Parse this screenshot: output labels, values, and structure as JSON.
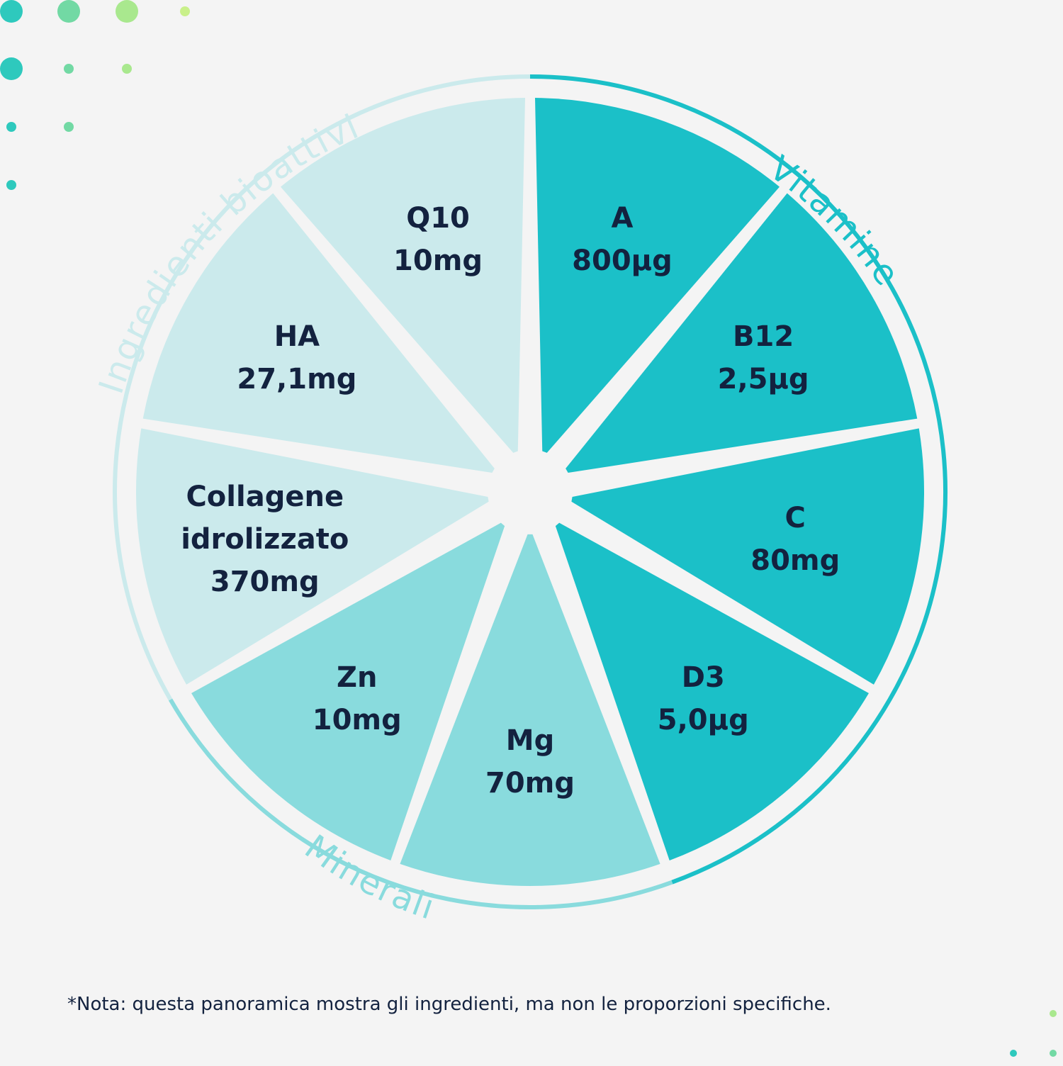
{
  "colors": {
    "background": "#f4f4f4",
    "vitamine": "#1bc0c8",
    "minerali": "#89dbdd",
    "bioattivi": "#cbeaec",
    "text": "#13223f",
    "dots": [
      "#2ec9bd",
      "#72d9a4",
      "#a9e88e",
      "#c9f08a"
    ]
  },
  "groups": [
    {
      "name": "Vitamine",
      "color": "#1bc0c8"
    },
    {
      "name": "Minerali",
      "color": "#89dbdd"
    },
    {
      "name": "Ingredienti bioattivi",
      "color": "#cbeaec"
    }
  ],
  "segments": [
    {
      "name": "A",
      "value": "800µg",
      "group": "Vitamine"
    },
    {
      "name": "B12",
      "value": "2,5µg",
      "group": "Vitamine"
    },
    {
      "name": "C",
      "value": "80mg",
      "group": "Vitamine"
    },
    {
      "name": "D3",
      "value": "5,0µg",
      "group": "Vitamine"
    },
    {
      "name": "Mg",
      "value": "70mg",
      "group": "Minerali"
    },
    {
      "name": "Zn",
      "value": "10mg",
      "group": "Minerali"
    },
    {
      "name": "Collagene idrolizzato",
      "value": "370mg",
      "group": "Ingredienti bioattivi"
    },
    {
      "name": "HA",
      "value": "27,1mg",
      "group": "Ingredienti bioattivi"
    },
    {
      "name": "Q10",
      "value": "10mg",
      "group": "Ingredienti bioattivi"
    }
  ],
  "note": "*Nota: questa panoramica mostra gli ingredienti, ma non le proporzioni specifiche."
}
